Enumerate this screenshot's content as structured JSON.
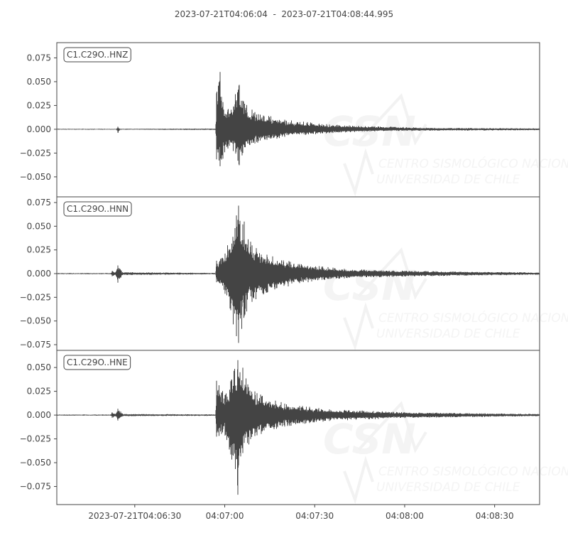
{
  "chart_data": {
    "type": "line",
    "title": "2023-07-21T04:06:04  -  2023-07-21T04:08:44.995",
    "time_range": [
      "04:06:04",
      "04:08:44.995"
    ],
    "date": "2023-07-21",
    "x_ticks": [
      {
        "time": "04:06:30",
        "label": "2023-07-21T04:06:30"
      },
      {
        "time": "04:07:00",
        "label": "04:07:00"
      },
      {
        "time": "04:07:30",
        "label": "04:07:30"
      },
      {
        "time": "04:08:00",
        "label": "04:08:00"
      },
      {
        "time": "04:08:30",
        "label": "04:08:30"
      }
    ],
    "line_color": "#444444",
    "grid": false,
    "watermark": {
      "logo": "CSN",
      "line1": "CENTRO SISMOLÓGICO NACIONAL",
      "line2": "UNIVERSIDAD DE CHILE"
    },
    "series": [
      {
        "name": "C1.C29O..HNZ",
        "ylim": [
          -0.071,
          0.091
        ],
        "y_ticks": [
          "0.075",
          "0.050",
          "0.025",
          "0.000",
          "−0.025",
          "−0.050"
        ],
        "y_tick_values": [
          0.075,
          0.05,
          0.025,
          0,
          -0.025,
          -0.05
        ],
        "envelope": [
          [
            "04:06:04",
            0.0005,
            -0.0005
          ],
          [
            "04:06:24.0",
            0.0005,
            -0.0005
          ],
          [
            "04:06:24.4",
            0.003,
            -0.004
          ],
          [
            "04:06:25.0",
            0.0005,
            -0.0005
          ],
          [
            "04:06:57.0",
            0.0008,
            -0.0008
          ],
          [
            "04:06:57.3",
            0.042,
            -0.035
          ],
          [
            "04:06:58.5",
            0.061,
            -0.039
          ],
          [
            "04:06:59.5",
            0.025,
            -0.03
          ],
          [
            "04:07:01",
            0.02,
            -0.02
          ],
          [
            "04:07:04.9",
            0.047,
            -0.038
          ],
          [
            "04:07:06",
            0.03,
            -0.025
          ],
          [
            "04:07:10",
            0.018,
            -0.015
          ],
          [
            "04:07:20",
            0.01,
            -0.008
          ],
          [
            "04:07:35",
            0.005,
            -0.004
          ],
          [
            "04:07:50",
            0.003,
            -0.002
          ],
          [
            "04:08:10",
            0.0015,
            -0.0015
          ],
          [
            "04:08:44.995",
            0.001,
            -0.001
          ]
        ]
      },
      {
        "name": "C1.C29O..HNN",
        "ylim": [
          -0.081,
          0.081
        ],
        "y_ticks": [
          "0.075",
          "0.050",
          "0.025",
          "0.000",
          "−0.025",
          "−0.050",
          "−0.075"
        ],
        "y_tick_values": [
          0.075,
          0.05,
          0.025,
          0,
          -0.025,
          -0.05,
          -0.075
        ],
        "envelope": [
          [
            "04:06:04",
            0.0006,
            -0.0006
          ],
          [
            "04:06:22.0",
            0.0006,
            -0.0006
          ],
          [
            "04:06:22.5",
            0.003,
            -0.003
          ],
          [
            "04:06:23.5",
            0.001,
            -0.001
          ],
          [
            "04:06:24.4",
            0.009,
            -0.01
          ],
          [
            "04:06:26",
            0.0015,
            -0.0015
          ],
          [
            "04:06:57.0",
            0.0008,
            -0.0008
          ],
          [
            "04:06:57.3",
            0.015,
            -0.01
          ],
          [
            "04:07:00",
            0.02,
            -0.02
          ],
          [
            "04:07:03.8",
            0.06,
            -0.065
          ],
          [
            "04:07:04.7",
            0.073,
            -0.074
          ],
          [
            "04:07:06.5",
            0.055,
            -0.045
          ],
          [
            "04:07:09",
            0.03,
            -0.03
          ],
          [
            "04:07:14",
            0.02,
            -0.02
          ],
          [
            "04:07:25",
            0.01,
            -0.01
          ],
          [
            "04:07:40",
            0.005,
            -0.005
          ],
          [
            "04:08:00",
            0.003,
            -0.003
          ],
          [
            "04:08:44.995",
            0.0012,
            -0.0012
          ]
        ]
      },
      {
        "name": "C1.C29O..HNE",
        "ylim": [
          -0.094,
          0.068
        ],
        "y_ticks": [
          "0.050",
          "0.025",
          "0.000",
          "−0.025",
          "−0.050",
          "−0.075"
        ],
        "y_tick_values": [
          0.05,
          0.025,
          0,
          -0.025,
          -0.05,
          -0.075
        ],
        "envelope": [
          [
            "04:06:04",
            0.0006,
            -0.0006
          ],
          [
            "04:06:22.0",
            0.0006,
            -0.0006
          ],
          [
            "04:06:22.5",
            0.003,
            -0.003
          ],
          [
            "04:06:23.5",
            0.001,
            -0.001
          ],
          [
            "04:06:24.4",
            0.007,
            -0.006
          ],
          [
            "04:06:26",
            0.0012,
            -0.0012
          ],
          [
            "04:06:57.0",
            0.0008,
            -0.0008
          ],
          [
            "04:06:57.3",
            0.04,
            -0.025
          ],
          [
            "04:07:00",
            0.02,
            -0.02
          ],
          [
            "04:07:04.4",
            0.058,
            -0.084
          ],
          [
            "04:07:06",
            0.05,
            -0.04
          ],
          [
            "04:07:10",
            0.025,
            -0.022
          ],
          [
            "04:07:20",
            0.012,
            -0.012
          ],
          [
            "04:07:35",
            0.006,
            -0.006
          ],
          [
            "04:08:00",
            0.003,
            -0.003
          ],
          [
            "04:08:44.995",
            0.0012,
            -0.0012
          ]
        ]
      }
    ]
  }
}
